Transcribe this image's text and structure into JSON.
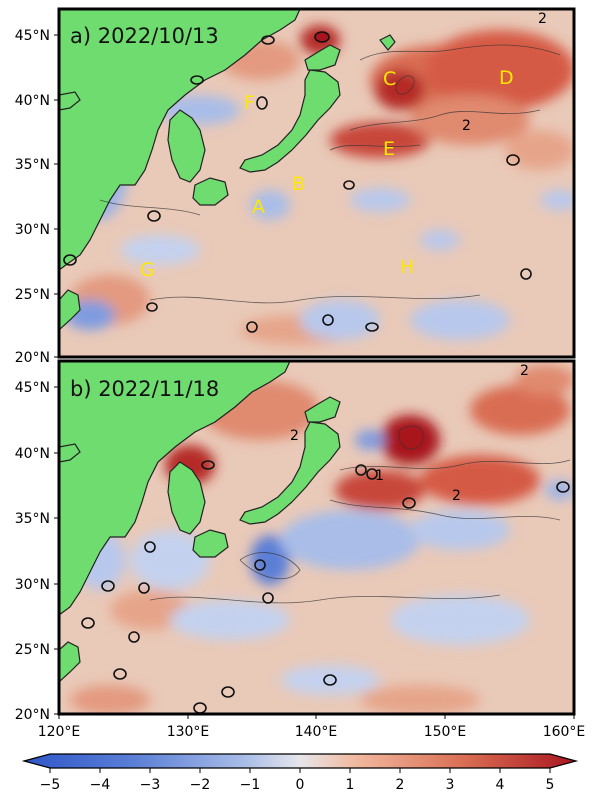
{
  "panels": [
    {
      "title": "a) 2022/10/13",
      "region_labels": [
        "A",
        "B",
        "C",
        "D",
        "E",
        "F",
        "G",
        "H"
      ]
    },
    {
      "title": "b) 2022/11/18"
    }
  ],
  "axes": {
    "lat_ticks": [
      "45°N",
      "40°N",
      "35°N",
      "30°N",
      "25°N",
      "20°N"
    ],
    "lon_ticks": [
      "120°E",
      "130°E",
      "140°E",
      "150°E",
      "160°E"
    ]
  },
  "colorbar": {
    "ticks": [
      "−5",
      "−4",
      "−3",
      "−2",
      "−1",
      "0",
      "1",
      "2",
      "3",
      "4",
      "5"
    ],
    "range": [
      -5,
      5
    ]
  },
  "contour_labels": [
    "2",
    "2",
    "2",
    "2",
    "1",
    "2"
  ],
  "colors": {
    "land": "#6fdc6f",
    "warm": "#c0392b",
    "cool": "#5b7fd6",
    "neutral": "#e9c9b8",
    "label_yellow": "#ffe800"
  }
}
